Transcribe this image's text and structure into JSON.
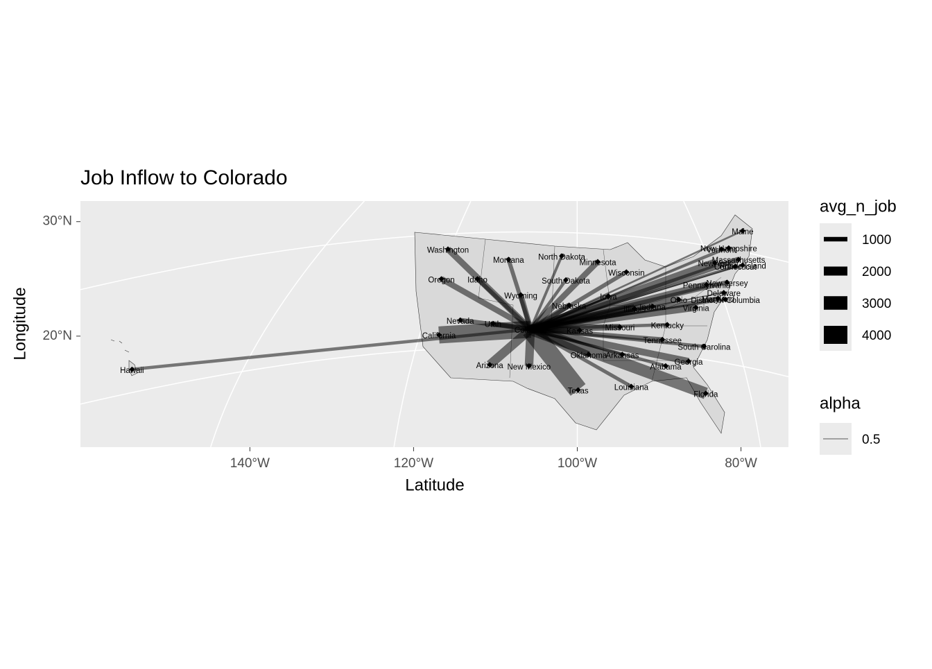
{
  "chart_data": {
    "type": "flow-map",
    "title": "Job Inflow to Colorado",
    "x_label": "Latitude",
    "y_label": "Longitude",
    "xlim": [
      -160.7,
      -74.2
    ],
    "ylim": [
      10.3,
      31.8
    ],
    "xticks": [
      {
        "value": -140,
        "label": "140°W"
      },
      {
        "value": -120,
        "label": "120°W"
      },
      {
        "value": -100,
        "label": "100°W"
      },
      {
        "value": -80,
        "label": "80°W"
      }
    ],
    "yticks": [
      {
        "value": 20,
        "label": "20°N"
      },
      {
        "value": 30,
        "label": "30°N"
      }
    ],
    "grid": true,
    "origin": {
      "name": "Colorado",
      "lon": -105.7,
      "lat": 20.6
    },
    "flows": [
      {
        "name": "Hawaii",
        "lon": -154.4,
        "lat": 17.1,
        "avg_n_job": 700
      },
      {
        "name": "Washington",
        "lon": -115.8,
        "lat": 27.6,
        "avg_n_job": 1400
      },
      {
        "name": "Oregon",
        "lon": -116.6,
        "lat": 25.0,
        "avg_n_job": 1300
      },
      {
        "name": "California",
        "lon": -116.9,
        "lat": 20.1,
        "avg_n_job": 3800
      },
      {
        "name": "Nevada",
        "lon": -114.3,
        "lat": 21.4,
        "avg_n_job": 1000
      },
      {
        "name": "Idaho",
        "lon": -112.2,
        "lat": 25.0,
        "avg_n_job": 900
      },
      {
        "name": "Montana",
        "lon": -108.4,
        "lat": 26.7,
        "avg_n_job": 900
      },
      {
        "name": "Wyoming",
        "lon": -106.9,
        "lat": 23.6,
        "avg_n_job": 1200
      },
      {
        "name": "Utah",
        "lon": -110.3,
        "lat": 21.1,
        "avg_n_job": 1100
      },
      {
        "name": "Arizona",
        "lon": -110.7,
        "lat": 17.5,
        "avg_n_job": 2000
      },
      {
        "name": "New Mexico",
        "lon": -105.9,
        "lat": 17.4,
        "avg_n_job": 1900
      },
      {
        "name": "North Dakota",
        "lon": -101.9,
        "lat": 27.0,
        "avg_n_job": 600
      },
      {
        "name": "South Dakota",
        "lon": -101.4,
        "lat": 24.9,
        "avg_n_job": 700
      },
      {
        "name": "Nebraska",
        "lon": -101.0,
        "lat": 22.7,
        "avg_n_job": 1200
      },
      {
        "name": "Kansas",
        "lon": -99.7,
        "lat": 20.5,
        "avg_n_job": 1600
      },
      {
        "name": "Oklahoma",
        "lon": -98.6,
        "lat": 18.4,
        "avg_n_job": 1400
      },
      {
        "name": "Texas",
        "lon": -99.9,
        "lat": 15.3,
        "avg_n_job": 4200
      },
      {
        "name": "Minnesota",
        "lon": -97.5,
        "lat": 26.5,
        "avg_n_job": 1300
      },
      {
        "name": "Iowa",
        "lon": -96.2,
        "lat": 23.5,
        "avg_n_job": 900
      },
      {
        "name": "Missouri",
        "lon": -94.8,
        "lat": 20.8,
        "avg_n_job": 1400
      },
      {
        "name": "Arkansas",
        "lon": -94.5,
        "lat": 18.4,
        "avg_n_job": 600
      },
      {
        "name": "Louisiana",
        "lon": -93.4,
        "lat": 15.6,
        "avg_n_job": 800
      },
      {
        "name": "Wisconsin",
        "lon": -94.0,
        "lat": 25.6,
        "avg_n_job": 900
      },
      {
        "name": "Illinois",
        "lon": -93.0,
        "lat": 22.4,
        "avg_n_job": 2000
      },
      {
        "name": "Indiana",
        "lon": -90.8,
        "lat": 22.6,
        "avg_n_job": 800
      },
      {
        "name": "Ohio",
        "lon": -87.6,
        "lat": 23.2,
        "avg_n_job": 1300
      },
      {
        "name": "Kentucky",
        "lon": -89.0,
        "lat": 21.0,
        "avg_n_job": 700
      },
      {
        "name": "Tennessee",
        "lon": -89.6,
        "lat": 19.7,
        "avg_n_job": 1000
      },
      {
        "name": "Alabama",
        "lon": -89.2,
        "lat": 17.4,
        "avg_n_job": 700
      },
      {
        "name": "Georgia",
        "lon": -86.4,
        "lat": 17.8,
        "avg_n_job": 1500
      },
      {
        "name": "Florida",
        "lon": -84.3,
        "lat": 15.0,
        "avg_n_job": 2600
      },
      {
        "name": "South Carolina",
        "lon": -84.5,
        "lat": 19.1,
        "avg_n_job": 700
      },
      {
        "name": "Virginia",
        "lon": -85.5,
        "lat": 22.5,
        "avg_n_job": 1500
      },
      {
        "name": "Pennsylvania",
        "lon": -84.2,
        "lat": 24.5,
        "avg_n_job": 1400
      },
      {
        "name": "New York",
        "lon": -83.2,
        "lat": 26.4,
        "avg_n_job": 1800
      },
      {
        "name": "New Jersey",
        "lon": -81.7,
        "lat": 24.7,
        "avg_n_job": 1000
      },
      {
        "name": "Delaware",
        "lon": -82.1,
        "lat": 23.8,
        "avg_n_job": 300
      },
      {
        "name": "Maryland",
        "lon": -82.8,
        "lat": 23.3,
        "avg_n_job": 900
      },
      {
        "name": "District of Columbia",
        "lon": -81.9,
        "lat": 23.2,
        "avg_n_job": 500
      },
      {
        "name": "Connecticut",
        "lon": -80.7,
        "lat": 26.1,
        "avg_n_job": 600
      },
      {
        "name": "Massachusetts",
        "lon": -80.3,
        "lat": 26.7,
        "avg_n_job": 1200
      },
      {
        "name": "Rhode Island",
        "lon": -79.8,
        "lat": 26.2,
        "avg_n_job": 300
      },
      {
        "name": "New Hampshire",
        "lon": -81.5,
        "lat": 27.7,
        "avg_n_job": 400
      },
      {
        "name": "Vermont",
        "lon": -82.4,
        "lat": 27.6,
        "avg_n_job": 300
      },
      {
        "name": "Maine",
        "lon": -79.8,
        "lat": 29.2,
        "avg_n_job": 400
      }
    ],
    "line_color": "#000000",
    "size_legend": {
      "title": "avg_n_job",
      "values": [
        1000,
        2000,
        3000,
        4000
      ]
    },
    "alpha_legend": {
      "title": "alpha",
      "values": [
        0.5
      ]
    }
  }
}
